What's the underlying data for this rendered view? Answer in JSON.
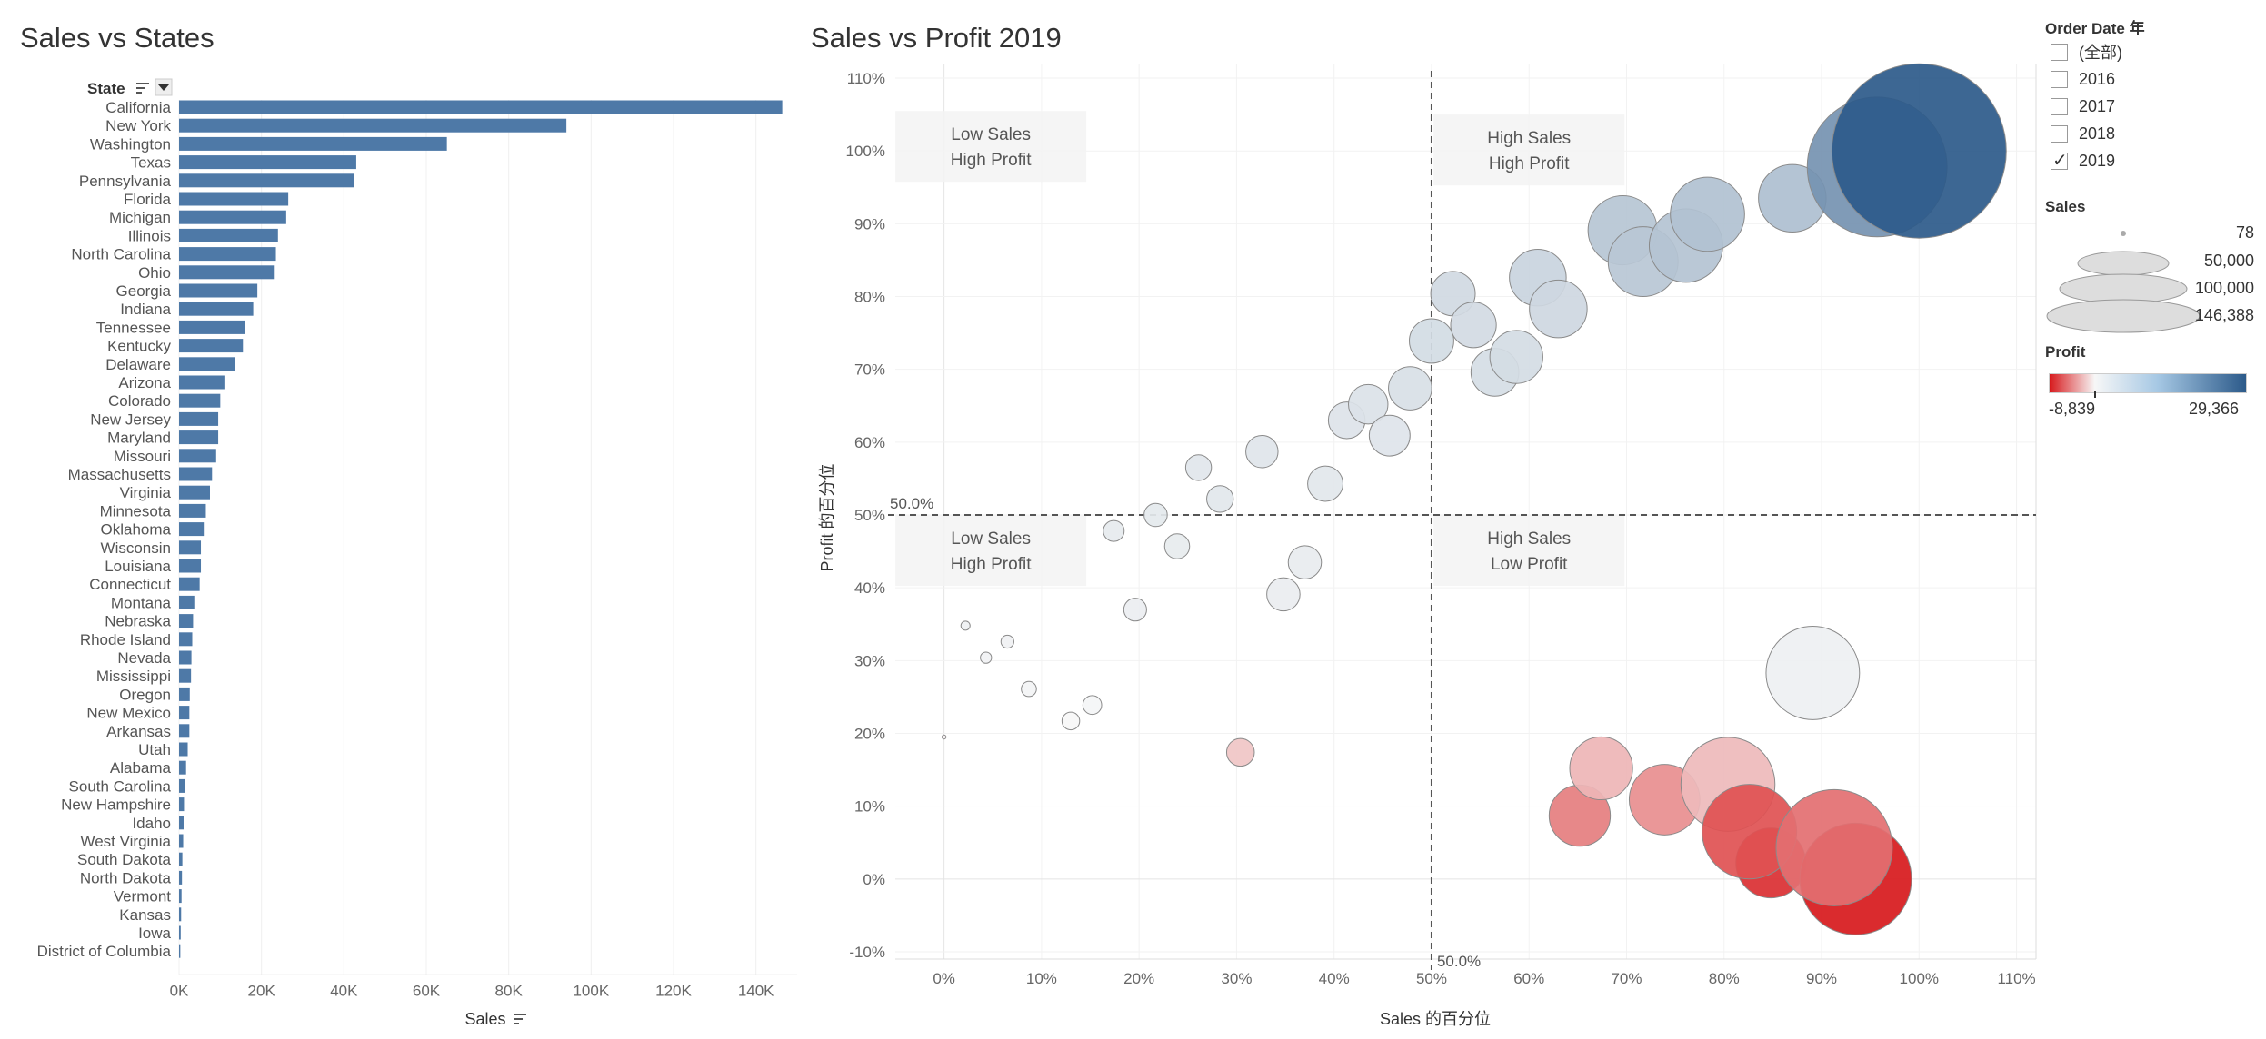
{
  "titles": {
    "left": "Sales vs States",
    "right": "Sales vs Profit 2019"
  },
  "filter": {
    "title": "Order Date 年",
    "options": [
      {
        "label": "(全部)",
        "checked": false
      },
      {
        "label": "2016",
        "checked": false
      },
      {
        "label": "2017",
        "checked": false
      },
      {
        "label": "2018",
        "checked": false
      },
      {
        "label": "2019",
        "checked": true
      }
    ]
  },
  "size_legend": {
    "title": "Sales",
    "items": [
      "78",
      "50,000",
      "100,000",
      "146,388"
    ]
  },
  "color_legend": {
    "title": "Profit",
    "min_label": "-8,839",
    "max_label": "29,366",
    "colors": [
      "#d7191c",
      "#f7f7f7",
      "#2c5a8a"
    ]
  },
  "chart_data": [
    {
      "type": "bar",
      "orientation": "horizontal",
      "title": "Sales vs States",
      "header": "State",
      "xlabel": "Sales",
      "xlim": [
        0,
        150000
      ],
      "xticks": [
        "0K",
        "20K",
        "40K",
        "60K",
        "80K",
        "100K",
        "120K",
        "140K"
      ],
      "bar_color": "#4e79a7",
      "categories": [
        "California",
        "New York",
        "Washington",
        "Texas",
        "Pennsylvania",
        "Florida",
        "Michigan",
        "Illinois",
        "North Carolina",
        "Ohio",
        "Georgia",
        "Indiana",
        "Tennessee",
        "Kentucky",
        "Delaware",
        "Arizona",
        "Colorado",
        "New Jersey",
        "Maryland",
        "Missouri",
        "Massachusetts",
        "Virginia",
        "Minnesota",
        "Oklahoma",
        "Wisconsin",
        "Louisiana",
        "Connecticut",
        "Montana",
        "Nebraska",
        "Rhode Island",
        "Nevada",
        "Mississippi",
        "Oregon",
        "New Mexico",
        "Arkansas",
        "Utah",
        "Alabama",
        "South Carolina",
        "New Hampshire",
        "Idaho",
        "West Virginia",
        "South Dakota",
        "North Dakota",
        "Vermont",
        "Kansas",
        "Iowa",
        "District of Columbia"
      ],
      "values": [
        146388,
        94000,
        65000,
        43000,
        42500,
        26500,
        26000,
        24000,
        23500,
        23000,
        19000,
        18000,
        16000,
        15500,
        13500,
        11000,
        10000,
        9500,
        9500,
        9000,
        8000,
        7500,
        6500,
        6000,
        5300,
        5300,
        5000,
        3700,
        3400,
        3200,
        3000,
        2900,
        2600,
        2500,
        2500,
        2100,
        1700,
        1500,
        1200,
        1100,
        1000,
        800,
        700,
        600,
        500,
        400,
        300
      ]
    },
    {
      "type": "scatter",
      "title": "Sales vs Profit 2019",
      "xlabel": "Sales 的百分位",
      "ylabel": "Profit 的百分位",
      "xlim": [
        -0.05,
        1.12
      ],
      "ylim": [
        -0.11,
        1.12
      ],
      "xticks": [
        "0%",
        "10%",
        "20%",
        "30%",
        "40%",
        "50%",
        "60%",
        "70%",
        "80%",
        "90%",
        "100%",
        "110%"
      ],
      "yticks": [
        "-10%",
        "0%",
        "10%",
        "20%",
        "30%",
        "40%",
        "50%",
        "60%",
        "70%",
        "80%",
        "90%",
        "100%",
        "110%"
      ],
      "reference_lines": [
        {
          "axis": "x",
          "value": 0.5,
          "label": "50.0%"
        },
        {
          "axis": "y",
          "value": 0.5,
          "label": "50.0%"
        }
      ],
      "quadrant_labels": [
        {
          "text": [
            "Low Sales",
            "High Profit"
          ],
          "x": 0.048,
          "y": 1.005
        },
        {
          "text": [
            "High Sales",
            "High Profit"
          ],
          "x": 0.6,
          "y": 1.0
        },
        {
          "text": [
            "Low Sales",
            "High Profit"
          ],
          "x": 0.048,
          "y": 0.45
        },
        {
          "text": [
            "High Sales",
            "Low Profit"
          ],
          "x": 0.6,
          "y": 0.45
        }
      ],
      "points": [
        {
          "x": 0.0,
          "y": 0.195,
          "sales": 78,
          "profit": -5
        },
        {
          "x": 0.022,
          "y": 0.348,
          "sales": 400,
          "profit": 50
        },
        {
          "x": 0.043,
          "y": 0.304,
          "sales": 600,
          "profit": 30
        },
        {
          "x": 0.065,
          "y": 0.326,
          "sales": 800,
          "profit": 40
        },
        {
          "x": 0.087,
          "y": 0.261,
          "sales": 1100,
          "profit": 10
        },
        {
          "x": 0.13,
          "y": 0.217,
          "sales": 1500,
          "profit": 0
        },
        {
          "x": 0.152,
          "y": 0.239,
          "sales": 1700,
          "profit": 5
        },
        {
          "x": 0.174,
          "y": 0.478,
          "sales": 2100,
          "profit": 200
        },
        {
          "x": 0.196,
          "y": 0.37,
          "sales": 2500,
          "profit": 100
        },
        {
          "x": 0.217,
          "y": 0.5,
          "sales": 2600,
          "profit": 250
        },
        {
          "x": 0.239,
          "y": 0.457,
          "sales": 3000,
          "profit": 180
        },
        {
          "x": 0.261,
          "y": 0.565,
          "sales": 3200,
          "profit": 350
        },
        {
          "x": 0.283,
          "y": 0.522,
          "sales": 3400,
          "profit": 300
        },
        {
          "x": 0.304,
          "y": 0.174,
          "sales": 3700,
          "profit": -400
        },
        {
          "x": 0.326,
          "y": 0.587,
          "sales": 5000,
          "profit": 400
        },
        {
          "x": 0.348,
          "y": 0.391,
          "sales": 5300,
          "profit": 120
        },
        {
          "x": 0.37,
          "y": 0.435,
          "sales": 5300,
          "profit": 160
        },
        {
          "x": 0.391,
          "y": 0.543,
          "sales": 6000,
          "profit": 320
        },
        {
          "x": 0.413,
          "y": 0.63,
          "sales": 6500,
          "profit": 500
        },
        {
          "x": 0.435,
          "y": 0.652,
          "sales": 7500,
          "profit": 550
        },
        {
          "x": 0.457,
          "y": 0.609,
          "sales": 8000,
          "profit": 450
        },
        {
          "x": 0.478,
          "y": 0.674,
          "sales": 9000,
          "profit": 700
        },
        {
          "x": 0.5,
          "y": 0.739,
          "sales": 9500,
          "profit": 900
        },
        {
          "x": 0.522,
          "y": 0.804,
          "sales": 9500,
          "profit": 1100
        },
        {
          "x": 0.543,
          "y": 0.761,
          "sales": 10000,
          "profit": 1000
        },
        {
          "x": 0.565,
          "y": 0.696,
          "sales": 11000,
          "profit": 800
        },
        {
          "x": 0.587,
          "y": 0.717,
          "sales": 13500,
          "profit": 850
        },
        {
          "x": 0.609,
          "y": 0.826,
          "sales": 15500,
          "profit": 1500
        },
        {
          "x": 0.63,
          "y": 0.783,
          "sales": 16000,
          "profit": 1200
        },
        {
          "x": 0.652,
          "y": 0.087,
          "sales": 18000,
          "profit": -2400
        },
        {
          "x": 0.674,
          "y": 0.152,
          "sales": 19000,
          "profit": -700
        },
        {
          "x": 0.696,
          "y": 0.891,
          "sales": 23000,
          "profit": 3000
        },
        {
          "x": 0.717,
          "y": 0.848,
          "sales": 23500,
          "profit": 2800
        },
        {
          "x": 0.739,
          "y": 0.109,
          "sales": 24000,
          "profit": -1800
        },
        {
          "x": 0.761,
          "y": 0.87,
          "sales": 26000,
          "profit": 3200
        },
        {
          "x": 0.783,
          "y": 0.913,
          "sales": 26500,
          "profit": 3500
        },
        {
          "x": 0.804,
          "y": 0.13,
          "sales": 42500,
          "profit": -600
        },
        {
          "x": 0.826,
          "y": 0.065,
          "sales": 43000,
          "profit": -4500
        },
        {
          "x": 0.848,
          "y": 0.022,
          "sales": 23500,
          "profit": -6500
        },
        {
          "x": 0.87,
          "y": 0.935,
          "sales": 22000,
          "profit": 3800
        },
        {
          "x": 0.891,
          "y": 0.283,
          "sales": 42000,
          "profit": 60
        },
        {
          "x": 0.913,
          "y": 0.043,
          "sales": 65000,
          "profit": -3000
        },
        {
          "x": 0.935,
          "y": 0.0,
          "sales": 60000,
          "profit": -8839
        },
        {
          "x": 0.957,
          "y": 0.978,
          "sales": 94000,
          "profit": 12000
        },
        {
          "x": 1.0,
          "y": 1.0,
          "sales": 146388,
          "profit": 29366
        }
      ]
    }
  ]
}
